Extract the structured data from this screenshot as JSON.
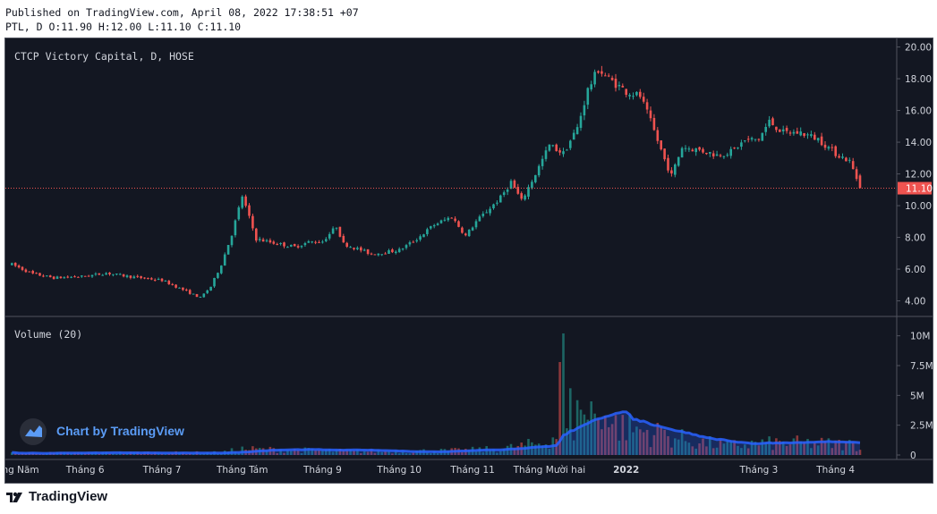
{
  "header": {
    "line1": "Published on TradingView.com, April 08, 2022 17:38:51 +07",
    "line2": "PTL, D O:11.90 H:12.00 L:11.10 C:11.10"
  },
  "footer": {
    "brand": "TradingView"
  },
  "colors": {
    "background": "#131722",
    "up": "#26a69a",
    "down": "#ef5350",
    "volume_ma": "#2962ff",
    "last_price": "#ef5350",
    "axis_text": "#d1d4dc"
  },
  "chart_data": {
    "type": "candlestick",
    "title": "CTCP Victory Capital, D, HOSE",
    "symbol": "PTL",
    "timeframe": "D",
    "exchange": "HOSE",
    "last_price": {
      "value": 11.1,
      "label": "11.10"
    },
    "ohlc_last": {
      "open": 11.9,
      "high": 12.0,
      "low": 11.1,
      "close": 11.1
    },
    "price_axis": {
      "ylim": [
        3.3,
        20.2
      ],
      "ticks": [
        "20.00",
        "18.00",
        "16.00",
        "14.00",
        "12.00",
        "10.00",
        "8.00",
        "6.00",
        "4.00"
      ]
    },
    "volume_pane": {
      "label": "Volume (20)",
      "ylim": [
        0,
        10500000
      ],
      "ticks": [
        "10M",
        "7.5M",
        "5M",
        "2.5M",
        "0"
      ],
      "tick_values": [
        10000000,
        7500000,
        5000000,
        2500000,
        0
      ]
    },
    "x_axis": {
      "labels": [
        "Tháng Năm",
        "Tháng 6",
        "Tháng 7",
        "Tháng Tám",
        "Tháng 9",
        "Tháng 10",
        "Tháng 11",
        "Tháng Mười hai",
        "2022",
        "Tháng 3",
        "Tháng 4"
      ],
      "label_bar_index": [
        0,
        21,
        43,
        66,
        89,
        111,
        132,
        154,
        176,
        214,
        236
      ],
      "bold": [
        "2022"
      ]
    },
    "price_path_anchors": [
      [
        -5,
        6.9
      ],
      [
        0,
        6.3
      ],
      [
        6,
        5.7
      ],
      [
        12,
        5.45
      ],
      [
        21,
        5.55
      ],
      [
        27,
        5.75
      ],
      [
        33,
        5.55
      ],
      [
        43,
        5.3
      ],
      [
        50,
        4.6
      ],
      [
        54,
        4.2
      ],
      [
        57,
        4.9
      ],
      [
        60,
        6.3
      ],
      [
        63,
        8.2
      ],
      [
        65,
        9.8
      ],
      [
        66,
        10.6
      ],
      [
        70,
        7.9
      ],
      [
        75,
        7.65
      ],
      [
        81,
        7.4
      ],
      [
        85,
        7.7
      ],
      [
        89,
        7.75
      ],
      [
        93,
        8.7
      ],
      [
        95,
        7.6
      ],
      [
        100,
        7.2
      ],
      [
        103,
        6.95
      ],
      [
        108,
        7.1
      ],
      [
        111,
        7.2
      ],
      [
        116,
        7.9
      ],
      [
        121,
        8.8
      ],
      [
        126,
        9.3
      ],
      [
        130,
        8.1
      ],
      [
        133,
        9.0
      ],
      [
        140,
        10.5
      ],
      [
        143,
        11.5
      ],
      [
        146,
        10.3
      ],
      [
        150,
        12.0
      ],
      [
        154,
        13.8
      ],
      [
        158,
        13.3
      ],
      [
        162,
        14.9
      ],
      [
        165,
        17.3
      ],
      [
        168,
        18.6
      ],
      [
        171,
        18.0
      ],
      [
        176,
        17.2
      ],
      [
        180,
        16.9
      ],
      [
        183,
        15.3
      ],
      [
        187,
        12.9
      ],
      [
        189,
        11.9
      ],
      [
        192,
        13.7
      ],
      [
        197,
        13.5
      ],
      [
        202,
        13.2
      ],
      [
        206,
        13.4
      ],
      [
        210,
        14.1
      ],
      [
        214,
        14.2
      ],
      [
        217,
        15.3
      ],
      [
        221,
        14.6
      ],
      [
        226,
        14.6
      ],
      [
        231,
        14.2
      ],
      [
        236,
        13.3
      ],
      [
        240,
        12.8
      ],
      [
        243,
        11.2
      ]
    ],
    "volume_profile": {
      "baseline": 200000,
      "ramp": [
        [
          0,
          150000
        ],
        [
          60,
          200000
        ],
        [
          66,
          500000
        ],
        [
          100,
          300000
        ],
        [
          125,
          350000
        ],
        [
          140,
          500000
        ],
        [
          152,
          1000000
        ],
        [
          160,
          2300000
        ],
        [
          168,
          2900000
        ],
        [
          176,
          2300000
        ],
        [
          186,
          1700000
        ],
        [
          196,
          1100000
        ],
        [
          205,
          800000
        ],
        [
          214,
          950000
        ],
        [
          225,
          1000000
        ],
        [
          243,
          850000
        ]
      ],
      "spikes": [
        [
          158,
          10200000
        ],
        [
          157,
          7800000
        ],
        [
          160,
          5600000
        ],
        [
          162,
          4600000
        ],
        [
          164,
          3400000
        ],
        [
          166,
          4500000
        ],
        [
          168,
          3000000
        ],
        [
          170,
          3300000
        ],
        [
          172,
          2600000
        ],
        [
          163,
          3800000
        ],
        [
          186,
          2300000
        ]
      ]
    },
    "volume_ma_period": 20,
    "bar_count": 244
  },
  "watermark": {
    "text": "Chart by TradingView"
  }
}
